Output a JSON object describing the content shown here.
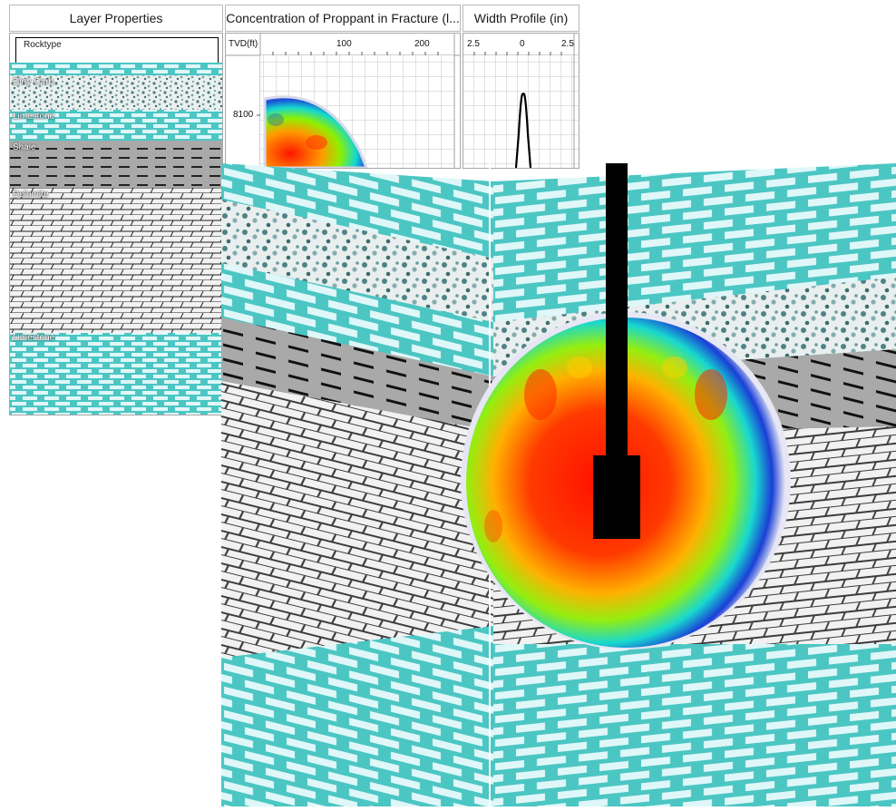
{
  "panels": {
    "layer_properties": {
      "title": "Layer Properties",
      "column_header": "Rocktype",
      "layers": [
        {
          "name": "Dirty Carb."
        },
        {
          "name": "Limestone"
        },
        {
          "name": "Shale"
        },
        {
          "name": "Dolomite"
        },
        {
          "name": "Limestone"
        }
      ]
    },
    "concentration": {
      "title": "Concentration of Proppant in Fracture (l...",
      "axis_label": "TVD(ft)",
      "x_ticks": [
        "100",
        "200"
      ],
      "y_tick": "8100"
    },
    "width_profile": {
      "title": "Width Profile (in)",
      "x_ticks": [
        "2.5",
        "0",
        "2.5"
      ]
    }
  },
  "colors": {
    "limestone": "#4bc6c3",
    "brick": "#dff7f8",
    "shale": "#a9a9a9",
    "dolomite": "#f2f2f2",
    "frame": "#a7a7a7"
  }
}
